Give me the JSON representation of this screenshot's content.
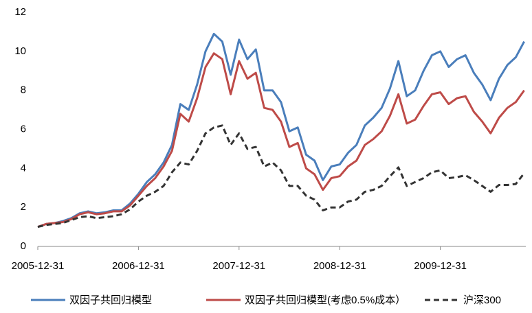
{
  "chart_data": {
    "type": "line",
    "categories": [
      "2005-12-31",
      null,
      null,
      null,
      null,
      null,
      null,
      null,
      null,
      null,
      null,
      null,
      "2006-12-31",
      null,
      null,
      null,
      null,
      null,
      null,
      null,
      null,
      null,
      null,
      null,
      "2007-12-31",
      null,
      null,
      null,
      null,
      null,
      null,
      null,
      null,
      null,
      null,
      null,
      "2008-12-31",
      null,
      null,
      null,
      null,
      null,
      null,
      null,
      null,
      null,
      null,
      null,
      "2009-12-31",
      null,
      null,
      null,
      null,
      null,
      null,
      null,
      null,
      null,
      null
    ],
    "series": [
      {
        "name": "双因子共回归模型",
        "color": "#4a7ebb",
        "dash": false,
        "values": [
          1.0,
          1.15,
          1.2,
          1.3,
          1.45,
          1.7,
          1.8,
          1.7,
          1.75,
          1.85,
          1.85,
          2.2,
          2.7,
          3.3,
          3.7,
          4.3,
          5.2,
          7.3,
          7.0,
          8.3,
          10.0,
          10.9,
          10.5,
          8.8,
          10.6,
          9.6,
          10.1,
          8.0,
          8.0,
          7.4,
          5.9,
          6.1,
          4.7,
          4.4,
          3.4,
          4.1,
          4.2,
          4.8,
          5.2,
          6.2,
          6.6,
          7.1,
          8.1,
          9.5,
          7.7,
          8.0,
          9.0,
          9.8,
          10.0,
          9.2,
          9.6,
          9.8,
          8.9,
          8.3,
          7.5,
          8.6,
          9.3,
          9.7,
          10.5
        ]
      },
      {
        "name": "双因子共回归模型(考虑0.5%成本）",
        "color": "#be4b48",
        "dash": false,
        "values": [
          1.0,
          1.15,
          1.2,
          1.25,
          1.4,
          1.65,
          1.75,
          1.65,
          1.7,
          1.8,
          1.8,
          2.1,
          2.6,
          3.1,
          3.5,
          4.1,
          4.9,
          6.8,
          6.4,
          7.6,
          9.2,
          9.9,
          9.6,
          7.8,
          9.5,
          8.6,
          8.9,
          7.1,
          7.0,
          6.4,
          5.1,
          5.3,
          4.0,
          3.7,
          2.9,
          3.5,
          3.6,
          4.1,
          4.4,
          5.2,
          5.5,
          5.9,
          6.7,
          7.8,
          6.3,
          6.5,
          7.2,
          7.8,
          7.9,
          7.3,
          7.6,
          7.7,
          6.9,
          6.4,
          5.8,
          6.6,
          7.1,
          7.4,
          8.0
        ]
      },
      {
        "name": "沪深300",
        "color": "#333333",
        "dash": true,
        "values": [
          1.0,
          1.1,
          1.15,
          1.2,
          1.35,
          1.5,
          1.55,
          1.45,
          1.5,
          1.55,
          1.65,
          1.9,
          2.3,
          2.6,
          2.8,
          3.1,
          3.8,
          4.3,
          4.2,
          4.9,
          5.8,
          6.1,
          6.2,
          5.2,
          5.8,
          5.0,
          5.1,
          4.1,
          4.3,
          3.9,
          3.1,
          3.1,
          2.6,
          2.4,
          1.85,
          2.0,
          2.0,
          2.3,
          2.4,
          2.8,
          2.9,
          3.1,
          3.6,
          4.05,
          3.1,
          3.3,
          3.5,
          3.8,
          3.9,
          3.5,
          3.55,
          3.65,
          3.4,
          3.1,
          2.8,
          3.15,
          3.15,
          3.2,
          3.75
        ]
      }
    ],
    "ylim": [
      0,
      12
    ],
    "yticks": [
      0,
      2,
      4,
      6,
      8,
      10,
      12
    ],
    "grid": false,
    "legend": "bottom"
  }
}
